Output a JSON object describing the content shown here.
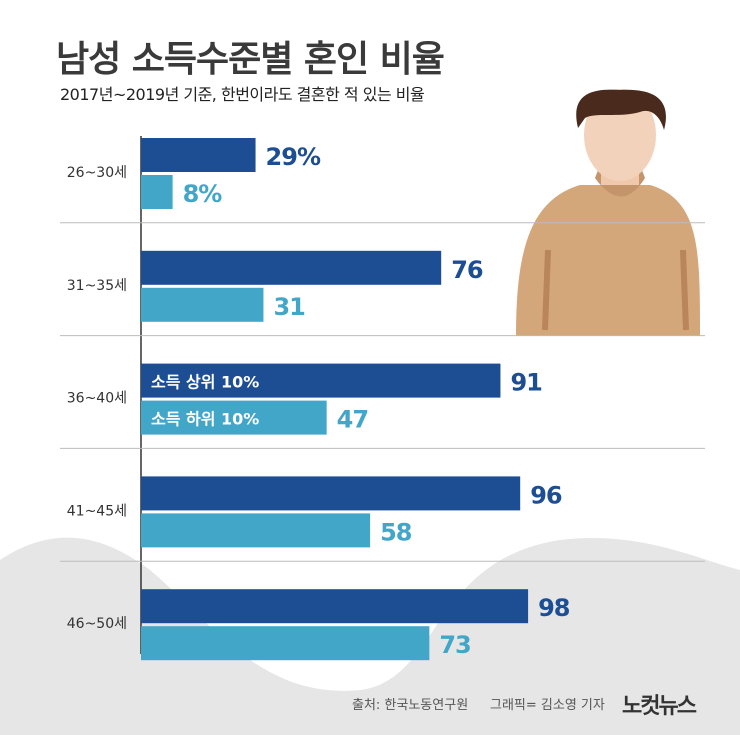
{
  "title": "남성 소득수준별 혼인 비율",
  "subtitle": "2017년~2019년 기준, 한번이라도 결혼한 적 있는 비율",
  "footer": {
    "source": "출처: 한국노동연구원",
    "credit": "그래픽= 김소영 기자",
    "logo": "노컷뉴스"
  },
  "chart_data": {
    "type": "bar",
    "orientation": "horizontal",
    "categories": [
      "26~30세",
      "31~35세",
      "36~40세",
      "41~45세",
      "46~50세"
    ],
    "series": [
      {
        "name": "소득 상위 10%",
        "values": [
          29,
          76,
          91,
          96,
          98
        ],
        "color": "#1d4e94"
      },
      {
        "name": "소득 하위 10%",
        "values": [
          8,
          31,
          47,
          58,
          73
        ],
        "color": "#42a6c9"
      }
    ],
    "value_labels": [
      [
        "29%",
        "76",
        "91",
        "96",
        "98"
      ],
      [
        "8%",
        "31",
        "47",
        "58",
        "73"
      ]
    ],
    "xlim": [
      0,
      100
    ],
    "legend": "inside bars of 36~40세 group",
    "grid": false
  },
  "colors": {
    "dark_bar": "#1d4e94",
    "light_bar": "#42a6c9",
    "background_wave": "#e6e6e6"
  }
}
